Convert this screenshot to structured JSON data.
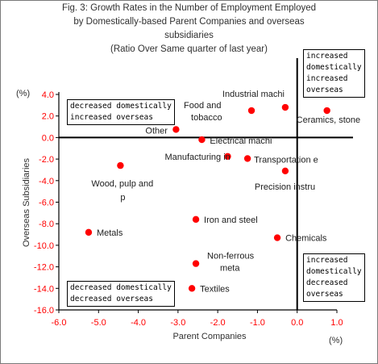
{
  "chart_data": {
    "type": "scatter",
    "title_lines": [
      "Fig. 3: Growth Rates in the Number of Employment Employed",
      "by Domestically-based Parent Companies and overseas",
      "subsidiaries",
      "(Ratio Over Same quarter of last year)"
    ],
    "xlabel": "Parent Companies",
    "ylabel": "Overseas Subsidiaries",
    "x_unit": "(%)",
    "y_unit": "(%)",
    "xlim": [
      -6.0,
      1.0
    ],
    "ylim": [
      -16.0,
      4.0
    ],
    "x_ticks": [
      "-6.0",
      "-5.0",
      "-4.0",
      "-3.0",
      "-2.0",
      "-1.0",
      "0.0",
      "1.0"
    ],
    "y_ticks": [
      "4.0",
      "2.0",
      "0.0",
      "-2.0",
      "-4.0",
      "-6.0",
      "-8.0",
      "-10.0",
      "-12.0",
      "-14.0",
      "-16.0"
    ],
    "points": [
      {
        "label": "Industrial machi",
        "x": -0.3,
        "y": 2.8
      },
      {
        "label": "Food and tobacco",
        "x": -1.15,
        "y": 2.5
      },
      {
        "label": "Ceramics, stone",
        "x": 0.75,
        "y": 2.5
      },
      {
        "label": "Other",
        "x": -3.05,
        "y": 0.75
      },
      {
        "label": "Electrical machi",
        "x": -2.4,
        "y": -0.2
      },
      {
        "label": "Manufacturing in",
        "x": -1.75,
        "y": -1.75
      },
      {
        "label": "Transportation e",
        "x": -1.25,
        "y": -1.95
      },
      {
        "label": "Wood, pulp and p",
        "x": -4.45,
        "y": -2.6
      },
      {
        "label": "Precision instru",
        "x": -0.3,
        "y": -3.1
      },
      {
        "label": "Iron and steel",
        "x": -2.55,
        "y": -7.6
      },
      {
        "label": "Metals",
        "x": -5.25,
        "y": -8.8
      },
      {
        "label": "Chemicals",
        "x": -0.5,
        "y": -9.3
      },
      {
        "label": "Non-ferrous meta",
        "x": -2.55,
        "y": -11.7
      },
      {
        "label": "Textiles",
        "x": -2.65,
        "y": -14.0
      }
    ],
    "quadrant_labels": {
      "top_right": [
        "increased",
        "domestically",
        "increased",
        "overseas"
      ],
      "top_left": [
        "decreased domestically",
        "increased overseas"
      ],
      "bottom_right": [
        "increased",
        "domestically",
        "decreased",
        "overseas"
      ],
      "bottom_left": [
        "decreased domestically",
        "decreased overseas"
      ]
    },
    "colors": {
      "marker": "#ff0000",
      "tick_label": "#ff0000",
      "text": "#303030"
    }
  }
}
